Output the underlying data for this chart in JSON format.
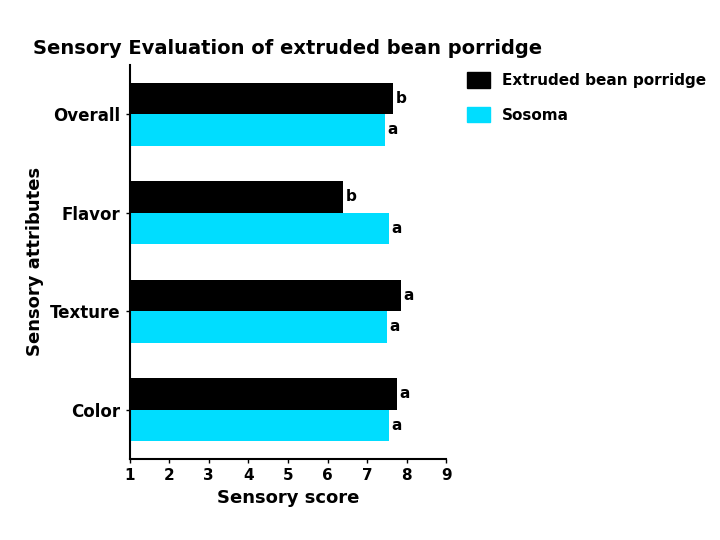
{
  "title": "Sensory Evaluation of extruded bean porridge",
  "xlabel": "Sensory score",
  "ylabel": "Sensory attributes",
  "categories": [
    "Color",
    "Texture",
    "Flavor",
    "Overall"
  ],
  "series": [
    {
      "name": "Extruded bean porridge",
      "color": "#000000",
      "values": [
        7.75,
        7.85,
        6.4,
        7.65
      ],
      "labels": [
        "a",
        "a",
        "b",
        "b"
      ]
    },
    {
      "name": "Sosoma",
      "color": "#00DDFF",
      "values": [
        7.55,
        7.5,
        7.55,
        7.45
      ],
      "labels": [
        "a",
        "a",
        "a",
        "a"
      ]
    }
  ],
  "xlim": [
    1,
    9
  ],
  "xticks": [
    1,
    2,
    3,
    4,
    5,
    6,
    7,
    8,
    9
  ],
  "bar_height": 0.32,
  "title_fontsize": 14,
  "axis_label_fontsize": 13,
  "tick_fontsize": 11,
  "ytick_fontsize": 12,
  "bar_label_fontsize": 11,
  "legend_fontsize": 11,
  "background_color": "#ffffff"
}
